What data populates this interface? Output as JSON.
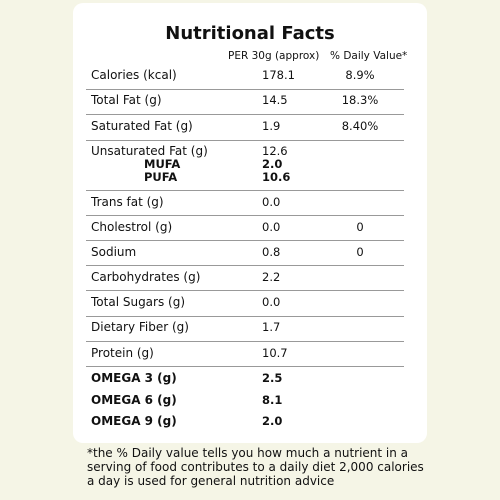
{
  "title": "Nutritional Facts",
  "header": [
    "PER 30g (approx)",
    "% Daily Value*"
  ],
  "rows": [
    {
      "label": "Calories (kcal)",
      "value": "178.1",
      "daily_value": "8.9%"
    },
    {
      "label": "Total Fat (g)",
      "value": "14.5",
      "daily_value": "18.3%"
    },
    {
      "label": "Saturated Fat (g)",
      "value": "1.9",
      "daily_value": "8.40%"
    },
    {
      "label": "Unsaturated Fat (g)",
      "value": "12.6",
      "sub": [
        {
          "label": "MUFA",
          "value": "2.0"
        },
        {
          "label": "PUFA",
          "value": "10.6"
        }
      ]
    },
    {
      "label": "Trans fat (g)",
      "value": "0.0"
    },
    {
      "label": "Cholestrol (g)",
      "value": "0.0",
      "daily_value": "0"
    },
    {
      "label": "Sodium",
      "value": "0.8",
      "daily_value": "0"
    },
    {
      "label": "Carbohydrates (g)",
      "value": "2.2"
    },
    {
      "label": "Total Sugars (g)",
      "value": "0.0"
    },
    {
      "label": "Dietary Fiber (g)",
      "value": "1.7"
    },
    {
      "label": "Protein (g)",
      "value": "10.7"
    },
    {
      "label": "OMEGA 3 (g)",
      "value": "2.5"
    },
    {
      "label": "OMEGA 6 (g)",
      "value": "8.1"
    },
    {
      "label": "OMEGA 9 (g)",
      "value": "2.0"
    }
  ],
  "footnote": [
    "*the % Daily value tells you how much a nutrient in a",
    "serving of food contributes to a daily diet 2,000 calories",
    "a day is used for general nutrition advice"
  ]
}
